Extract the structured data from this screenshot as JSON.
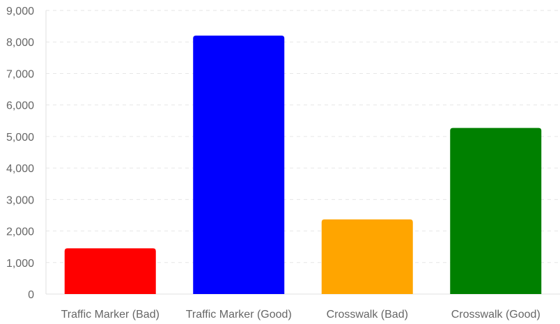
{
  "chart_data": {
    "type": "bar",
    "title": "",
    "xlabel": "",
    "ylabel": "",
    "categories": [
      "Traffic Marker (Bad)",
      "Traffic Marker (Good)",
      "Crosswalk (Bad)",
      "Crosswalk (Good)"
    ],
    "values": [
      1450,
      8200,
      2370,
      5270
    ],
    "colors": [
      "#ff0000",
      "#0000ff",
      "#ffa500",
      "#008000"
    ],
    "ylim": [
      0,
      9000
    ],
    "yticks": [
      0,
      1000,
      2000,
      3000,
      4000,
      5000,
      6000,
      7000,
      8000,
      9000
    ],
    "ytick_labels": [
      "0",
      "1,000",
      "2,000",
      "3,000",
      "4,000",
      "5,000",
      "6,000",
      "7,000",
      "8,000",
      "9,000"
    ],
    "grid": true,
    "legend": "none"
  }
}
